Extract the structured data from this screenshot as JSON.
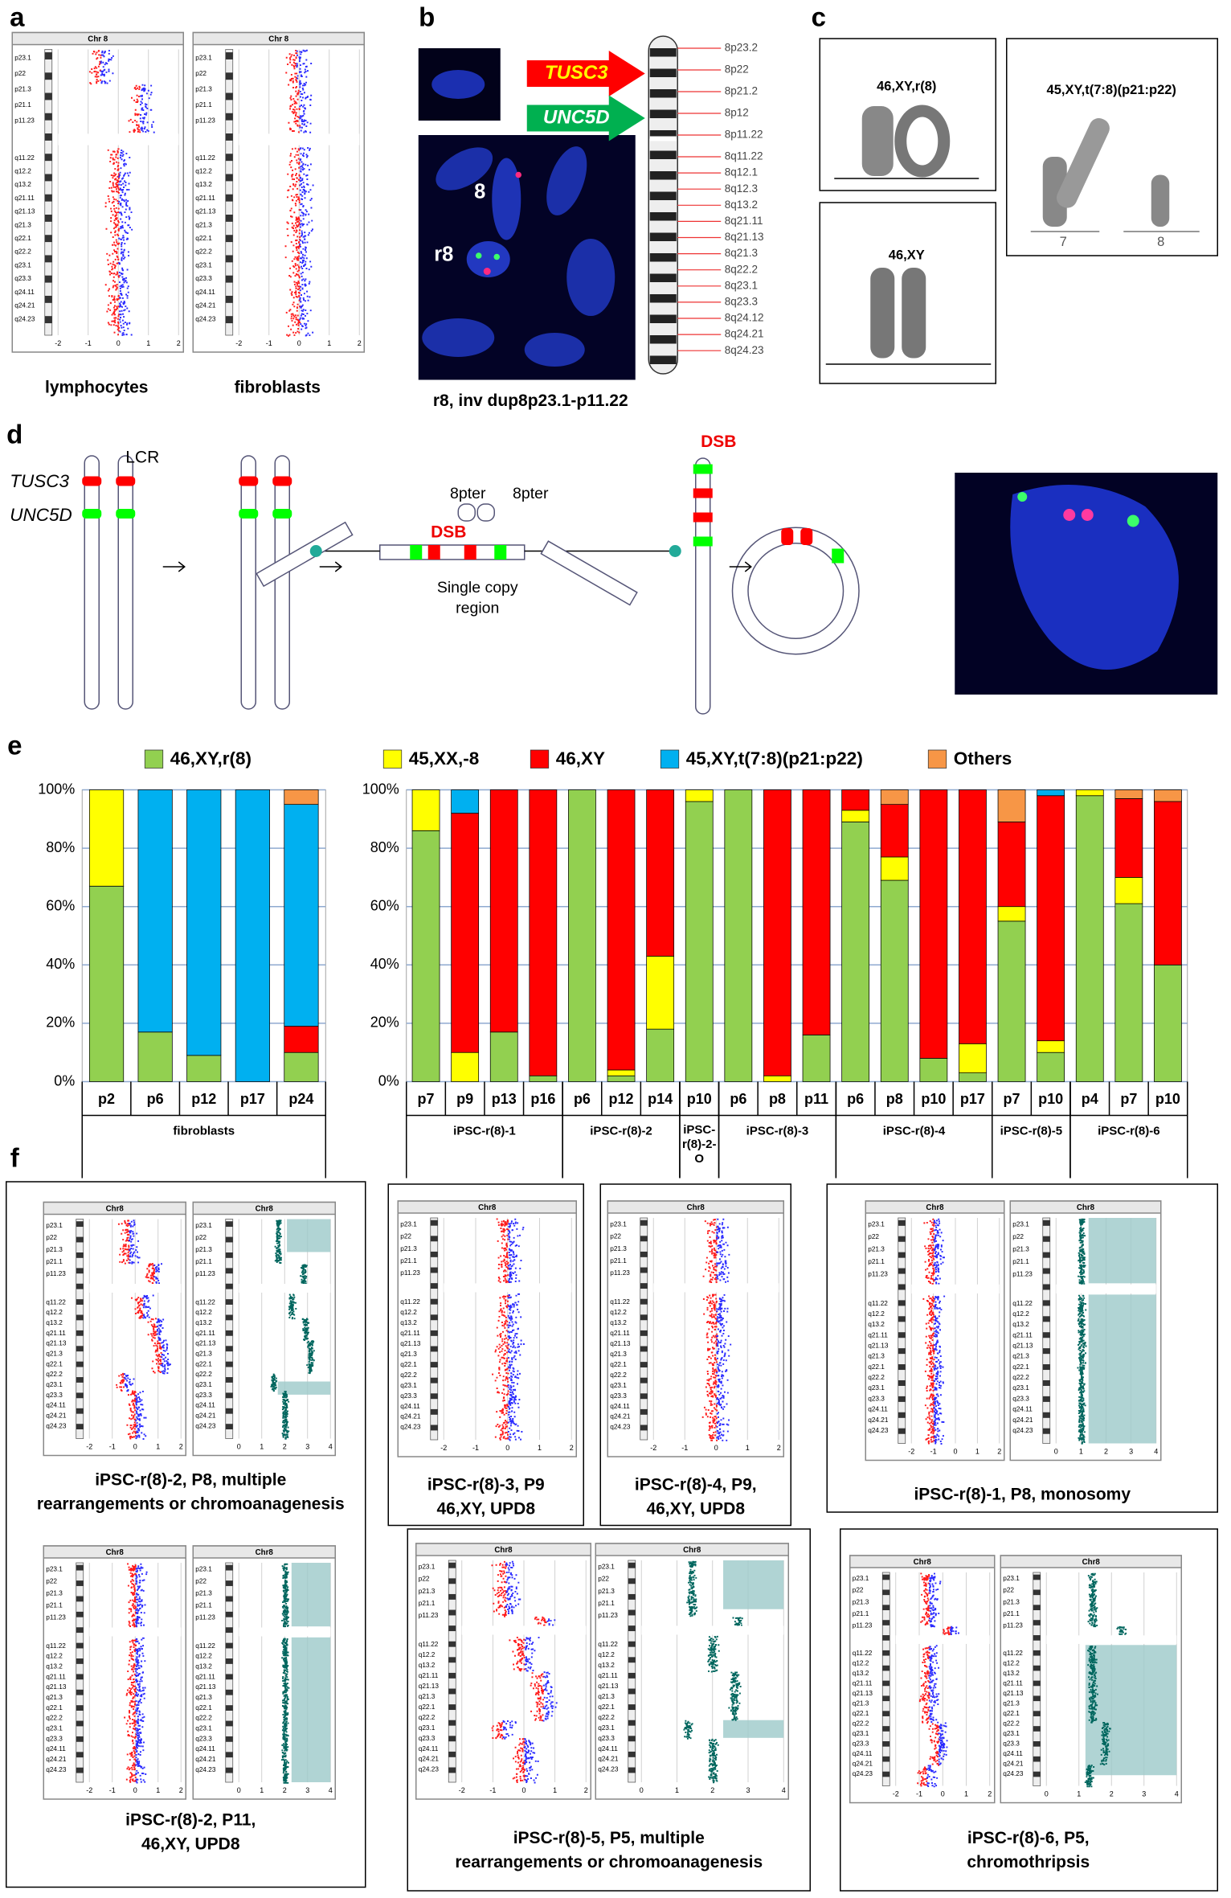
{
  "panel_labels": [
    "a",
    "b",
    "c",
    "d",
    "e",
    "f"
  ],
  "ideogram_bands": [
    "p23.1",
    "p22",
    "p21.3",
    "p21.1",
    "p11.23",
    "q11.22",
    "q12.2",
    "q13.2",
    "q21.11",
    "q21.13",
    "q21.3",
    "q22.1",
    "q22.2",
    "q23.1",
    "q23.3",
    "q24.11",
    "q24.21",
    "q24.23"
  ],
  "a": {
    "plot_title": "Chr 8",
    "xticks": [
      -2,
      -1,
      0,
      1,
      2
    ],
    "captions": [
      "lymphocytes",
      "fibroblasts"
    ]
  },
  "b": {
    "markers": [
      "8",
      "r8"
    ],
    "genes": [
      "TUSC3",
      "UNC5D"
    ],
    "bands": [
      "8p23.2",
      "8p22",
      "8p21.2",
      "8p12",
      "8p11.22",
      "8q11.22",
      "8q12.1",
      "8q12.3",
      "8q13.2",
      "8q21.11",
      "8q21.13",
      "8q21.3",
      "8q22.2",
      "8q23.1",
      "8q23.3",
      "8q24.12",
      "8q24.21",
      "8q24.23"
    ],
    "caption": "r8, inv dup8p23.1-p11.22"
  },
  "c": {
    "karyotypes": [
      "46,XY,r(8)",
      "46,XY",
      "45,XY,t(7:8)(p21:p22)"
    ],
    "chromosomes": [
      "7",
      "8"
    ]
  },
  "d": {
    "genes": [
      "TUSC3",
      "UNC5D"
    ],
    "lcr": "LCR",
    "pter": [
      "8pter",
      "8pter"
    ],
    "dsb": [
      "DSB",
      "DSB"
    ],
    "region": [
      "Single copy",
      "region"
    ]
  },
  "chart_data": {
    "type": "bar",
    "stacked": true,
    "grid": true,
    "ylim": [
      0,
      100
    ],
    "yticks": [
      {
        "value": 0,
        "label": "0%"
      },
      {
        "value": 20,
        "label": "20%"
      },
      {
        "value": 40,
        "label": "40%"
      },
      {
        "value": 60,
        "label": "60%"
      },
      {
        "value": 80,
        "label": "80%"
      },
      {
        "value": 100,
        "label": "100%"
      }
    ],
    "groups": [
      {
        "name": "fibroblasts",
        "categories": [
          "p2",
          "p6",
          "p12",
          "p17",
          "p24"
        ]
      },
      {
        "name": "iPSC-r(8)-1",
        "categories": [
          "p7",
          "p9",
          "p13",
          "p16"
        ]
      },
      {
        "name": "iPSC-r(8)-2",
        "categories": [
          "p6",
          "p12",
          "p14"
        ]
      },
      {
        "name": "iPSC-r(8)-2-O",
        "categories": [
          "p10"
        ]
      },
      {
        "name": "iPSC-r(8)-3",
        "categories": [
          "p6",
          "p8",
          "p11"
        ]
      },
      {
        "name": "iPSC-r(8)-4",
        "categories": [
          "p6",
          "p8",
          "p10",
          "p17"
        ]
      },
      {
        "name": "iPSC-r(8)-5",
        "categories": [
          "p7",
          "p10"
        ]
      },
      {
        "name": "iPSC-r(8)-6",
        "categories": [
          "p4",
          "p7",
          "p10"
        ]
      }
    ],
    "series": [
      {
        "name": "46,XY,r(8)",
        "color": "#92d050",
        "values": [
          67,
          17,
          9,
          0,
          10,
          86,
          0,
          17,
          2,
          100,
          2,
          18,
          96,
          100,
          0,
          16,
          89,
          69,
          8,
          3,
          55,
          10,
          98,
          61,
          40
        ]
      },
      {
        "name": "45,XX,-8",
        "color": "#ffff00",
        "values": [
          33,
          0,
          0,
          0,
          0,
          14,
          10,
          0,
          0,
          0,
          2,
          25,
          4,
          0,
          2,
          0,
          4,
          8,
          0,
          10,
          5,
          4,
          2,
          9,
          0
        ]
      },
      {
        "name": "46,XY",
        "color": "#ff0000",
        "values": [
          0,
          0,
          0,
          0,
          9,
          0,
          82,
          83,
          98,
          0,
          96,
          57,
          0,
          0,
          98,
          84,
          7,
          18,
          92,
          87,
          29,
          84,
          0,
          27,
          56
        ]
      },
      {
        "name": "45,XY,t(7:8)(p21:p22)",
        "color": "#00b0f0",
        "values": [
          0,
          83,
          91,
          100,
          76,
          0,
          8,
          0,
          0,
          0,
          0,
          0,
          0,
          0,
          0,
          0,
          0,
          0,
          0,
          0,
          0,
          2,
          0,
          0,
          0
        ]
      },
      {
        "name": "Others",
        "color": "#f79646",
        "values": [
          0,
          0,
          0,
          0,
          5,
          0,
          0,
          0,
          0,
          0,
          0,
          0,
          0,
          0,
          0,
          0,
          0,
          5,
          0,
          0,
          11,
          0,
          0,
          3,
          4
        ]
      }
    ]
  },
  "f": {
    "plot_title": "Chr8",
    "ratio_ticks": [
      -2,
      -1,
      0,
      1,
      2
    ],
    "copy_ticks": [
      0,
      1,
      2,
      3,
      4
    ],
    "captions": [
      [
        "iPSC-r(8)-2, P8, multiple",
        "rearrangements or chromoanagenesis"
      ],
      [
        "iPSC-r(8)-3, P9",
        "46,XY, UPD8"
      ],
      [
        "iPSC-r(8)-4, P9,",
        "46,XY, UPD8"
      ],
      [
        "iPSC-r(8)-1, P8, monosomy"
      ],
      [
        "iPSC-r(8)-2, P11,",
        "46,XY, UPD8"
      ],
      [
        "iPSC-r(8)-5, P5, multiple",
        "rearrangements or chromoanagenesis"
      ],
      [
        "iPSC-r(8)-6, P5,",
        "chromothripsis"
      ]
    ]
  }
}
